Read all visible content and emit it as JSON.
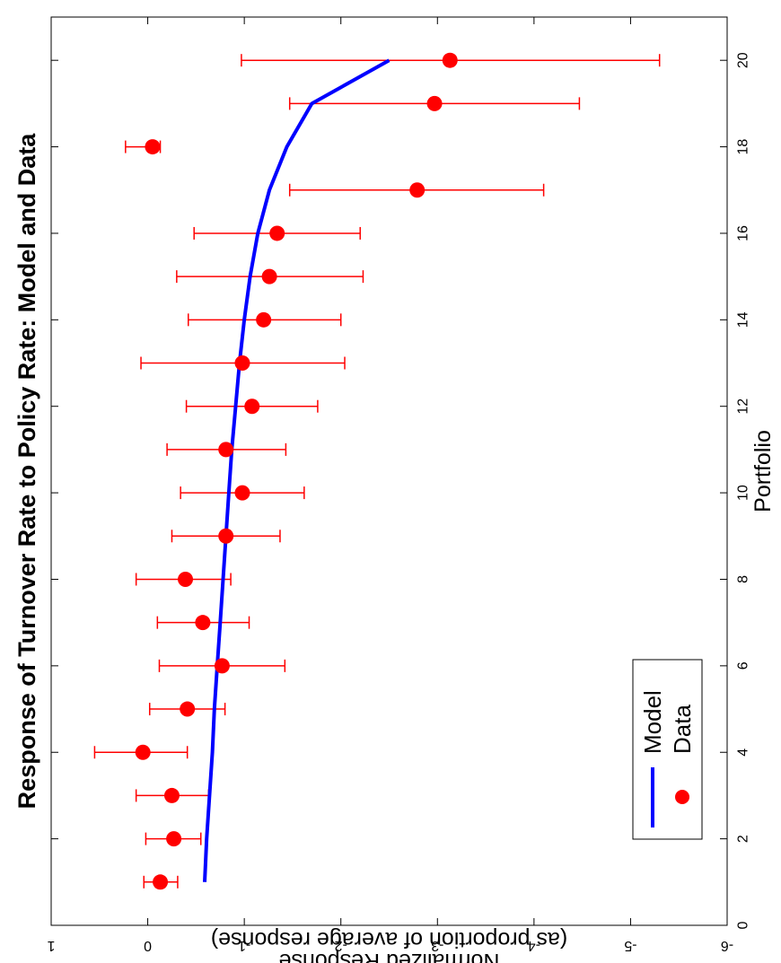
{
  "chart_data": {
    "type": "line",
    "title": "Response of Turnover Rate to Policy Rate: Model and Data",
    "xlabel": "Portfolio",
    "ylabel": "Normalized Response",
    "ylabel_sub": "(as proportion of average response)",
    "xlim": [
      0,
      21
    ],
    "ylim": [
      -6,
      1
    ],
    "x_ticks": [
      0,
      2,
      4,
      6,
      8,
      10,
      12,
      14,
      16,
      18,
      20
    ],
    "y_ticks": [
      -6,
      -5,
      -4,
      -3,
      -2,
      -1,
      0,
      1
    ],
    "x_tick_labels": [
      "0",
      "2",
      "4",
      "6",
      "8",
      "10",
      "12",
      "14",
      "16",
      "18",
      "20"
    ],
    "y_tick_labels": [
      "-6",
      "-5",
      "-4",
      "-3",
      "-2",
      "-1",
      "0",
      "1"
    ],
    "legend_position": "bottom-right",
    "series": [
      {
        "name": "Model",
        "kind": "line",
        "color": "#0000ff",
        "x": [
          1,
          2,
          3,
          4,
          5,
          6,
          7,
          8,
          9,
          10,
          11,
          12,
          13,
          14,
          15,
          16,
          17,
          18,
          19,
          20
        ],
        "y": [
          -0.59,
          -0.61,
          -0.64,
          -0.67,
          -0.69,
          -0.72,
          -0.75,
          -0.78,
          -0.81,
          -0.84,
          -0.87,
          -0.91,
          -0.95,
          -1.0,
          -1.06,
          -1.14,
          -1.26,
          -1.44,
          -1.7,
          -2.5
        ]
      },
      {
        "name": "Data",
        "kind": "scatter",
        "color": "#ff0000",
        "x": [
          1,
          2,
          3,
          4,
          5,
          6,
          7,
          8,
          9,
          10,
          11,
          12,
          13,
          14,
          15,
          16,
          17,
          18,
          19,
          20
        ],
        "y": [
          -0.13,
          -0.27,
          -0.25,
          0.05,
          -0.41,
          -0.77,
          -0.57,
          -0.39,
          -0.81,
          -0.98,
          -0.81,
          -1.08,
          -0.98,
          -1.2,
          -1.26,
          -1.34,
          -2.79,
          -0.05,
          -2.97,
          -3.13
        ],
        "err_low": [
          0.04,
          0.02,
          0.12,
          0.55,
          -0.02,
          -0.12,
          -0.1,
          0.12,
          -0.25,
          -0.34,
          -0.2,
          -0.4,
          0.07,
          -0.42,
          -0.3,
          -0.48,
          -1.47,
          -0.13,
          -1.47,
          -0.97
        ],
        "err_high": [
          -0.31,
          -0.55,
          -0.63,
          -0.41,
          -0.8,
          -1.42,
          -1.05,
          -0.86,
          -1.37,
          -1.62,
          -1.43,
          -1.76,
          -2.04,
          -2.0,
          -2.23,
          -2.2,
          -4.1,
          0.23,
          -4.47,
          -5.3
        ]
      }
    ]
  }
}
